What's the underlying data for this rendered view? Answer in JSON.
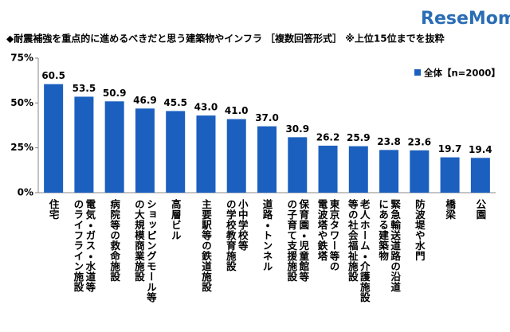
{
  "chart_data": {
    "type": "bar",
    "logo": "ReseMom",
    "title": "◆耐震補強を重点的に進めるべきだと思う建築物やインフラ ［複数回答形式］ ※上位15位までを抜粋",
    "categories": [
      "住宅",
      "電気・ガス・水道等\nのライフライン施設",
      "病院等の救命施設",
      "ショッピングモール等\nの大規模商業施設",
      "高層ビル",
      "主要駅等の鉄道施設",
      "小中学校等\nの学校教育施設",
      "道路・トンネル",
      "保育園・児童館等\nの子育て支援施設",
      "東京タワー等の\n電波塔や鉄塔",
      "老人ホーム・介護施設\n等の社会福祉施設",
      "緊急輸送道路の沿道\nにある建築物",
      "防波堤や水門",
      "橋梁",
      "公園"
    ],
    "series": [
      {
        "name": "全体【n=2000】",
        "color": "#1b5fbf",
        "values": [
          60.5,
          53.5,
          50.9,
          46.9,
          45.5,
          43.0,
          41.0,
          37.0,
          30.9,
          26.2,
          25.9,
          23.8,
          23.6,
          19.7,
          19.4
        ],
        "value_labels": [
          "60.5",
          "53.5",
          "50.9",
          "46.9",
          "45.5",
          "43.0",
          "41.0",
          "37.0",
          "30.9",
          "26.2",
          "25.9",
          "23.8",
          "23.6",
          "19.7",
          "19.4"
        ]
      }
    ],
    "ylim": [
      0,
      75
    ],
    "yticks": [
      {
        "value": 0,
        "label": "0%"
      },
      {
        "value": 25,
        "label": "25%"
      },
      {
        "value": 50,
        "label": "50%"
      },
      {
        "value": 75,
        "label": "75%"
      }
    ],
    "grid": false
  }
}
